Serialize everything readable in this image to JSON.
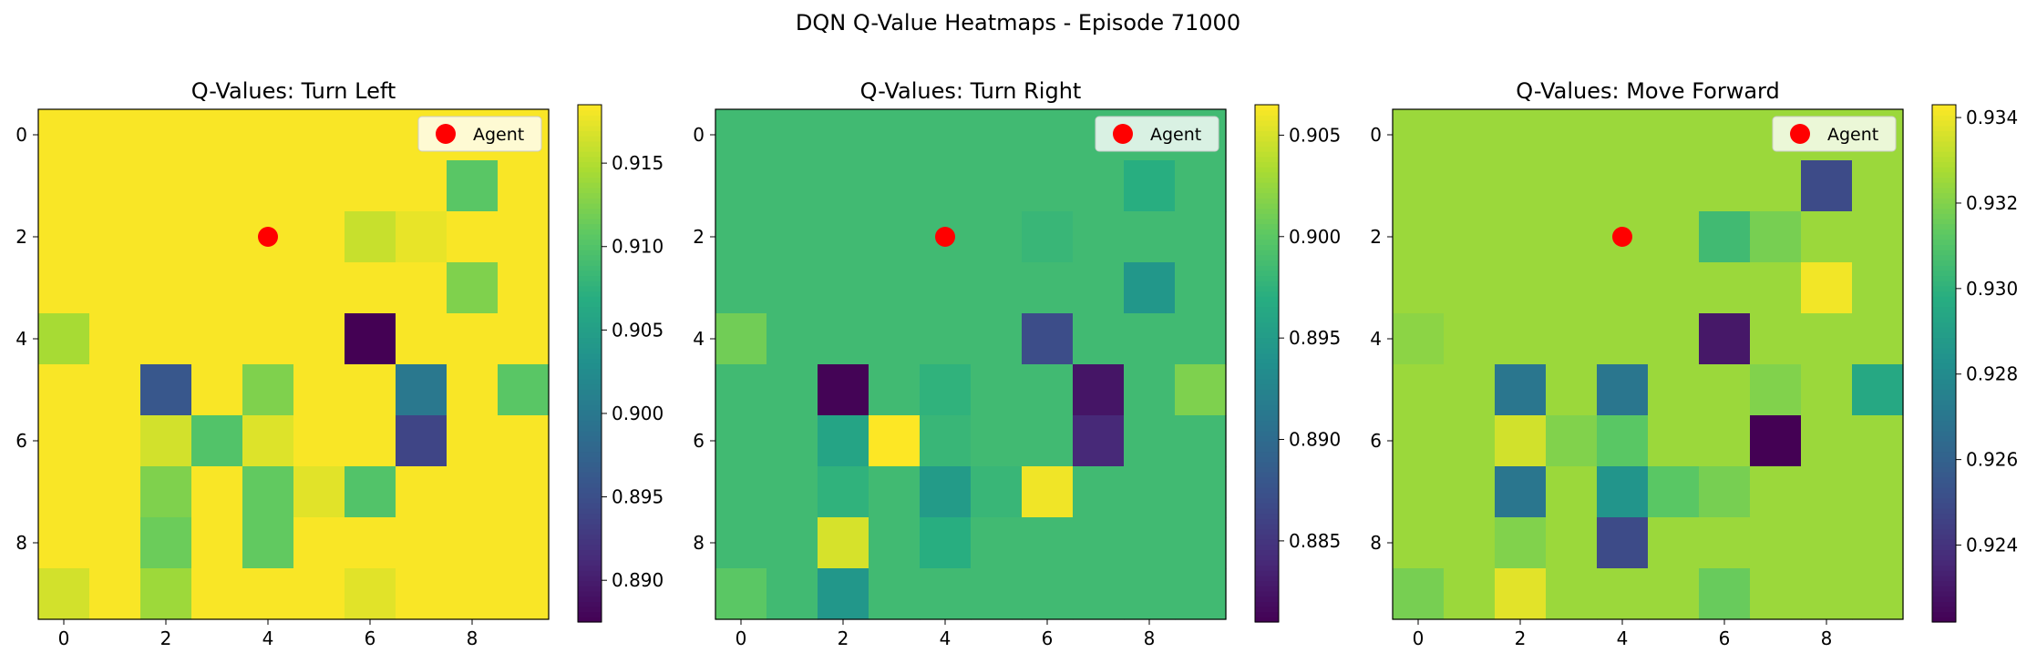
{
  "figure": {
    "title": "DQN Q-Value Heatmaps - Episode 71000"
  },
  "chart_data": [
    {
      "type": "heatmap",
      "title": "Q-Values: Turn Left",
      "xticks": [
        0,
        2,
        4,
        6,
        8
      ],
      "yticks": [
        0,
        2,
        4,
        6,
        8
      ],
      "colorbar": {
        "vmin": 0.8875,
        "vmax": 0.9185,
        "ticks": [
          "0.890",
          "0.895",
          "0.900",
          "0.905",
          "0.910",
          "0.915"
        ]
      },
      "legend": {
        "label": "Agent",
        "color": "#ff0000",
        "placement": "upper right"
      },
      "agent": {
        "x": 4,
        "y": 2
      },
      "grid": [
        [
          0.9183,
          0.9183,
          0.9183,
          0.9183,
          0.9183,
          0.9183,
          0.9183,
          0.9183,
          0.9183,
          0.9183
        ],
        [
          0.9183,
          0.9183,
          0.9183,
          0.9183,
          0.9183,
          0.9183,
          0.9183,
          0.9183,
          0.9105,
          0.9183
        ],
        [
          0.9183,
          0.9183,
          0.9183,
          0.9183,
          0.9183,
          0.9183,
          0.916,
          0.9175,
          0.9183,
          0.9183
        ],
        [
          0.9183,
          0.9183,
          0.9183,
          0.9183,
          0.9183,
          0.9183,
          0.9183,
          0.9183,
          0.9125,
          0.9183
        ],
        [
          0.9145,
          0.9183,
          0.9183,
          0.9183,
          0.9183,
          0.9183,
          0.8875,
          0.9183,
          0.9183,
          0.9183
        ],
        [
          0.9183,
          0.9183,
          0.896,
          0.9183,
          0.9125,
          0.9183,
          0.9183,
          0.9,
          0.9183,
          0.9105
        ],
        [
          0.9183,
          0.9183,
          0.9165,
          0.91,
          0.917,
          0.9183,
          0.9183,
          0.894,
          0.9183,
          0.9183
        ],
        [
          0.9183,
          0.9183,
          0.9125,
          0.9183,
          0.911,
          0.9172,
          0.91,
          0.9183,
          0.9183,
          0.9183
        ],
        [
          0.9183,
          0.9183,
          0.9115,
          0.9183,
          0.911,
          0.9183,
          0.9183,
          0.9183,
          0.9183,
          0.9183
        ],
        [
          0.9165,
          0.9183,
          0.914,
          0.9183,
          0.9183,
          0.9183,
          0.9172,
          0.9183,
          0.9183,
          0.9183
        ]
      ]
    },
    {
      "type": "heatmap",
      "title": "Q-Values: Turn Right",
      "xticks": [
        0,
        2,
        4,
        6,
        8
      ],
      "yticks": [
        0,
        2,
        4,
        6,
        8
      ],
      "colorbar": {
        "vmin": 0.881,
        "vmax": 0.9065,
        "ticks": [
          "0.885",
          "0.890",
          "0.895",
          "0.900",
          "0.905"
        ]
      },
      "legend": {
        "label": "Agent",
        "color": "#ff0000",
        "placement": "upper right"
      },
      "agent": {
        "x": 4,
        "y": 2
      },
      "grid": [
        [
          0.8985,
          0.8985,
          0.8985,
          0.8985,
          0.8985,
          0.8985,
          0.8985,
          0.8985,
          0.8985,
          0.8985
        ],
        [
          0.8985,
          0.8985,
          0.8985,
          0.8985,
          0.8985,
          0.8985,
          0.8985,
          0.8985,
          0.897,
          0.8985
        ],
        [
          0.8985,
          0.8985,
          0.8985,
          0.8985,
          0.8985,
          0.8985,
          0.898,
          0.8985,
          0.8985,
          0.8985
        ],
        [
          0.8985,
          0.8985,
          0.8985,
          0.8985,
          0.8985,
          0.8985,
          0.8985,
          0.8985,
          0.8945,
          0.8985
        ],
        [
          0.901,
          0.8985,
          0.8985,
          0.8985,
          0.8985,
          0.8985,
          0.887,
          0.8985,
          0.8985,
          0.8985
        ],
        [
          0.8985,
          0.8985,
          0.8812,
          0.8985,
          0.8975,
          0.8985,
          0.8985,
          0.8825,
          0.8985,
          0.9015
        ],
        [
          0.8985,
          0.8985,
          0.896,
          0.9065,
          0.898,
          0.8985,
          0.8985,
          0.884,
          0.8985,
          0.8985
        ],
        [
          0.8985,
          0.8985,
          0.8975,
          0.8985,
          0.895,
          0.898,
          0.906,
          0.8985,
          0.8985,
          0.8985
        ],
        [
          0.8985,
          0.8985,
          0.905,
          0.8985,
          0.897,
          0.8985,
          0.8985,
          0.8985,
          0.8985,
          0.8985
        ],
        [
          0.9,
          0.8985,
          0.8945,
          0.8985,
          0.8985,
          0.8985,
          0.8985,
          0.8985,
          0.8985,
          0.8985
        ]
      ]
    },
    {
      "type": "heatmap",
      "title": "Q-Values: Move Forward",
      "xticks": [
        0,
        2,
        4,
        6,
        8
      ],
      "yticks": [
        0,
        2,
        4,
        6,
        8
      ],
      "colorbar": {
        "vmin": 0.9222,
        "vmax": 0.9343,
        "ticks": [
          "0.924",
          "0.926",
          "0.928",
          "0.930",
          "0.932",
          "0.934"
        ]
      },
      "legend": {
        "label": "Agent",
        "color": "#ff0000",
        "placement": "upper right"
      },
      "agent": {
        "x": 4,
        "y": 2
      },
      "grid": [
        [
          0.9325,
          0.9325,
          0.9325,
          0.9325,
          0.9325,
          0.9325,
          0.9325,
          0.9325,
          0.9325,
          0.9325
        ],
        [
          0.9325,
          0.9325,
          0.9325,
          0.9325,
          0.9325,
          0.9325,
          0.9325,
          0.9325,
          0.925,
          0.9325
        ],
        [
          0.9325,
          0.9325,
          0.9325,
          0.9325,
          0.9325,
          0.9325,
          0.9305,
          0.9318,
          0.9325,
          0.9325
        ],
        [
          0.9325,
          0.9325,
          0.9325,
          0.9325,
          0.9325,
          0.9325,
          0.9325,
          0.9325,
          0.9341,
          0.9325
        ],
        [
          0.9322,
          0.9325,
          0.9325,
          0.9325,
          0.9325,
          0.9325,
          0.923,
          0.9325,
          0.9325,
          0.9325
        ],
        [
          0.9325,
          0.9325,
          0.927,
          0.9325,
          0.927,
          0.9325,
          0.9325,
          0.932,
          0.9325,
          0.9295
        ],
        [
          0.9325,
          0.9325,
          0.9335,
          0.932,
          0.9312,
          0.9325,
          0.9325,
          0.9222,
          0.9325,
          0.9325
        ],
        [
          0.9325,
          0.9325,
          0.927,
          0.9325,
          0.9285,
          0.9312,
          0.9318,
          0.9325,
          0.9325,
          0.9325
        ],
        [
          0.9325,
          0.9325,
          0.932,
          0.9325,
          0.925,
          0.9325,
          0.9325,
          0.9325,
          0.9325,
          0.9325
        ],
        [
          0.9318,
          0.9325,
          0.9338,
          0.9325,
          0.9325,
          0.9325,
          0.9315,
          0.9325,
          0.9325,
          0.9325
        ]
      ]
    }
  ]
}
